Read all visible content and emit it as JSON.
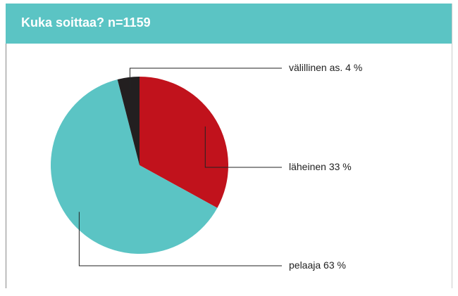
{
  "chart_data": {
    "type": "pie",
    "title": "Kuka soittaa? n=1159",
    "categories": [
      "läheinen",
      "pelaaja",
      "välillinen as."
    ],
    "values": [
      33,
      63,
      4
    ],
    "value_labels": [
      "33 %",
      "63 %",
      "4 %"
    ],
    "colors": [
      "#c1121c",
      "#5bc4c4",
      "#231f20"
    ]
  }
}
